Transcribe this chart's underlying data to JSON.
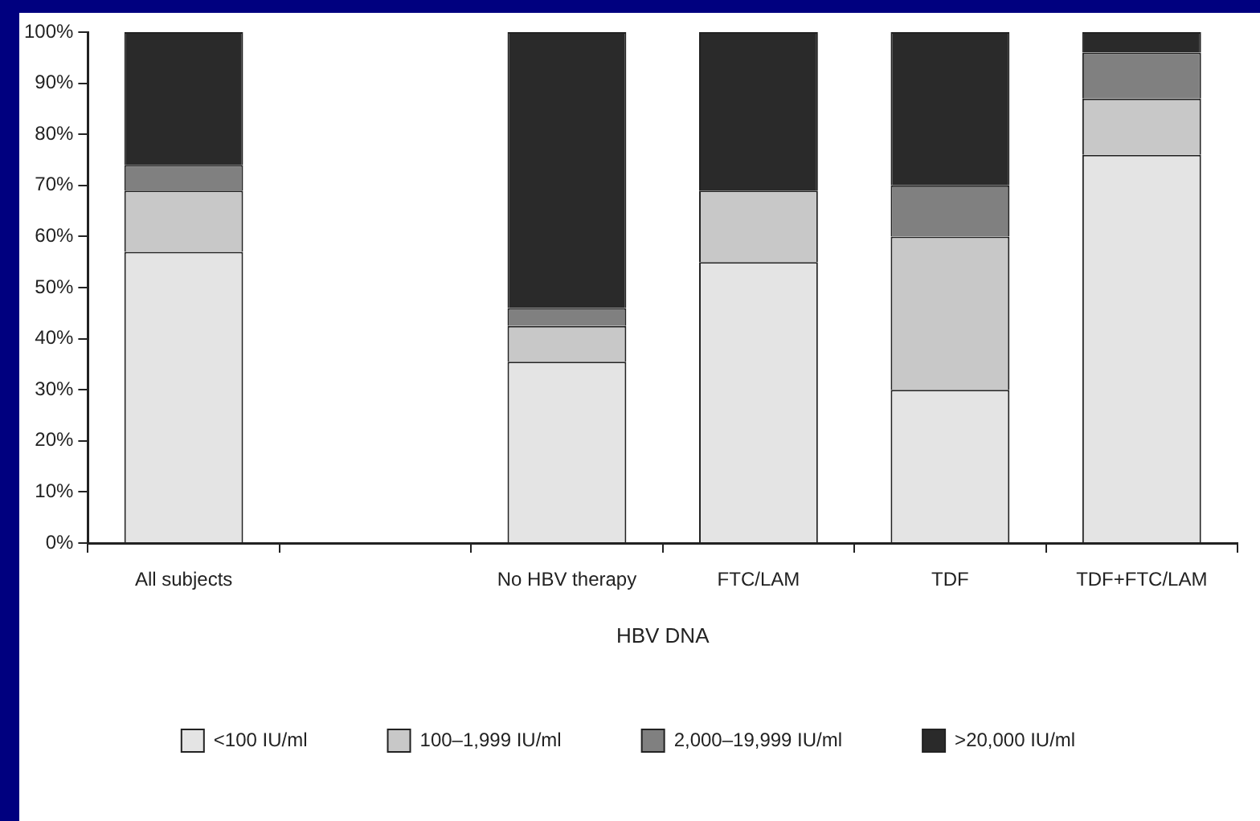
{
  "chart_data": {
    "type": "bar",
    "stacked": true,
    "xlabel": "HBV DNA",
    "categories": [
      "All subjects",
      null,
      "No HBV therapy",
      "FTC/LAM",
      "TDF",
      "TDF+FTC/LAM"
    ],
    "series": [
      {
        "name": "<100 IU/ml",
        "color": "#e4e4e4",
        "values": [
          57,
          null,
          35.5,
          55,
          30,
          76
        ]
      },
      {
        "name": "100–1,999 IU/ml",
        "color": "#c8c8c8",
        "values": [
          12,
          null,
          7,
          14,
          30,
          11
        ]
      },
      {
        "name": "2,000–19,999 IU/ml",
        "color": "#808080",
        "values": [
          5,
          null,
          3.5,
          0,
          10,
          9
        ]
      },
      {
        "name": ">20,000 IU/ml",
        "color": "#2a2a2a",
        "values": [
          26,
          null,
          54,
          31,
          30,
          4
        ]
      }
    ],
    "ylim": [
      0,
      100
    ],
    "yticks": [
      {
        "value": 0,
        "label": "0%"
      },
      {
        "value": 10,
        "label": "10%"
      },
      {
        "value": 20,
        "label": "20%"
      },
      {
        "value": 30,
        "label": "30%"
      },
      {
        "value": 40,
        "label": "40%"
      },
      {
        "value": 50,
        "label": "50%"
      },
      {
        "value": 60,
        "label": "60%"
      },
      {
        "value": 70,
        "label": "70%"
      },
      {
        "value": 80,
        "label": "80%"
      },
      {
        "value": 90,
        "label": "90%"
      },
      {
        "value": 100,
        "label": "100%"
      }
    ],
    "grid": false,
    "legend": "bottom"
  }
}
